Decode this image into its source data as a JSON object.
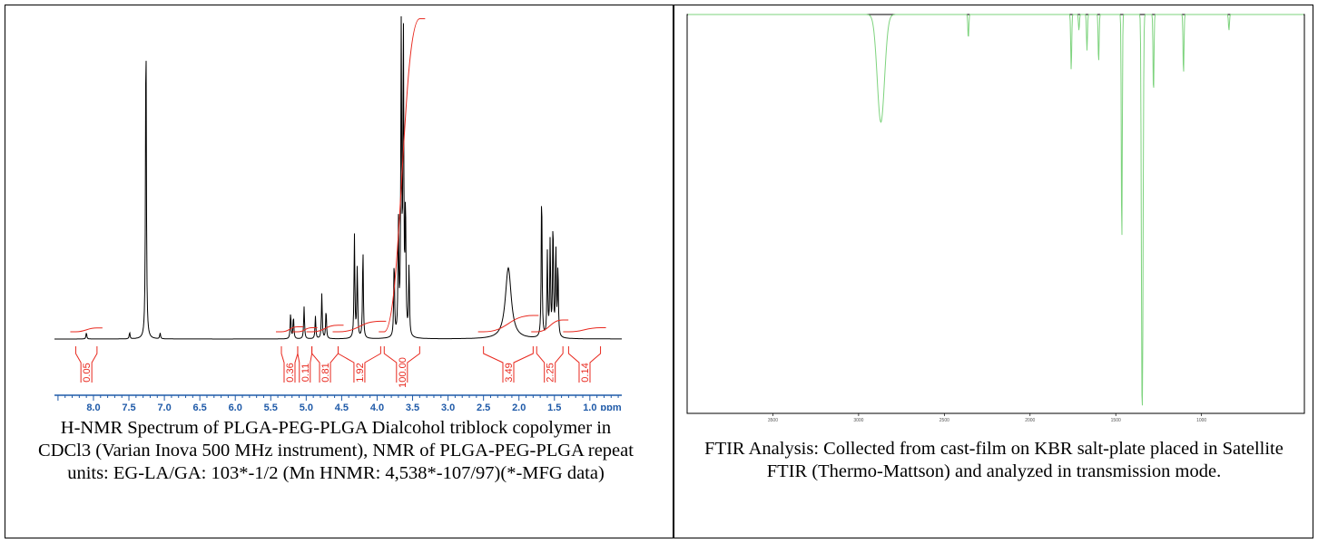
{
  "captions": {
    "nmr": "H-NMR Spectrum of PLGA-PEG-PLGA Dialcohol triblock copolymer in CDCl3 (Varian Inova 500 MHz instrument), NMR of PLGA-PEG-PLGA repeat units: EG-LA/GA: 103*-1/2 (Mn HNMR: 4,538*-107/97)(*-MFG data)",
    "ftir": "FTIR Analysis: Collected from cast-film on KBR salt-plate placed in Satellite FTIR (Thermo-Mattson) and analyzed in transmission mode."
  },
  "colors": {
    "spectrum": "#000000",
    "integral": "#e8281e",
    "ftir": "#7ed37e",
    "axis": "#1f5aa8"
  },
  "chart_data": [
    {
      "type": "line",
      "title": "",
      "xlabel": "ppm",
      "ylabel": "",
      "xlim": [
        8.55,
        0.55
      ],
      "x_reversed": true,
      "grid": false,
      "x_ticks": [
        "8.0",
        "7.5",
        "7.0",
        "6.5",
        "6.0",
        "5.5",
        "5.0",
        "4.5",
        "4.0",
        "3.5",
        "3.0",
        "2.5",
        "2.0",
        "1.5",
        "1.0",
        "ppm"
      ],
      "peaks": [
        {
          "ppm": 8.1,
          "h": 0.02
        },
        {
          "ppm": 7.49,
          "h": 0.02
        },
        {
          "ppm": 7.26,
          "h": 1.0
        },
        {
          "ppm": 7.06,
          "h": 0.018
        },
        {
          "ppm": 5.22,
          "h": 0.08
        },
        {
          "ppm": 5.18,
          "h": 0.07
        },
        {
          "ppm": 5.03,
          "h": 0.1
        },
        {
          "ppm": 4.87,
          "h": 0.07
        },
        {
          "ppm": 4.78,
          "h": 0.14
        },
        {
          "ppm": 4.72,
          "h": 0.09
        },
        {
          "ppm": 4.32,
          "h": 0.32
        },
        {
          "ppm": 4.28,
          "h": 0.22
        },
        {
          "ppm": 4.2,
          "h": 0.28
        },
        {
          "ppm": 3.76,
          "h": 0.24
        },
        {
          "ppm": 3.7,
          "h": 0.35
        },
        {
          "ppm": 3.66,
          "h": 1.0
        },
        {
          "ppm": 3.63,
          "h": 0.95
        },
        {
          "ppm": 3.6,
          "h": 0.4
        },
        {
          "ppm": 3.55,
          "h": 0.22
        },
        {
          "ppm": 2.15,
          "h": 0.22
        },
        {
          "ppm": 1.68,
          "h": 0.47
        },
        {
          "ppm": 1.6,
          "h": 0.26
        },
        {
          "ppm": 1.56,
          "h": 0.3
        },
        {
          "ppm": 1.52,
          "h": 0.36
        },
        {
          "ppm": 1.48,
          "h": 0.28
        },
        {
          "ppm": 1.45,
          "h": 0.22
        }
      ],
      "integrals": [
        {
          "from": 8.25,
          "to": 7.95,
          "label": "0.05"
        },
        {
          "from": 5.35,
          "to": 5.12,
          "label": "0.36"
        },
        {
          "from": 5.12,
          "to": 4.92,
          "label": "0.11"
        },
        {
          "from": 4.92,
          "to": 4.55,
          "label": "0.81"
        },
        {
          "from": 4.55,
          "to": 3.95,
          "label": "1.92"
        },
        {
          "from": 3.9,
          "to": 3.4,
          "label": "100.00"
        },
        {
          "from": 2.5,
          "to": 1.8,
          "label": "3.49"
        },
        {
          "from": 1.75,
          "to": 1.38,
          "label": "2.25"
        },
        {
          "from": 1.3,
          "to": 0.85,
          "label": "0.14"
        }
      ]
    },
    {
      "type": "line",
      "title": "",
      "xlabel": "",
      "ylabel": "",
      "xlim": [
        4000,
        400
      ],
      "x_reversed": true,
      "grid": false,
      "x_ticks": [
        "3500",
        "3000",
        "2500",
        "2000",
        "1500",
        "1000"
      ],
      "baseline_transmittance": 1.0,
      "bands": [
        {
          "wn": 2870,
          "t": 0.73
        },
        {
          "wn": 2360,
          "t": 0.94
        },
        {
          "wn": 1760,
          "t": 0.86
        },
        {
          "wn": 1715,
          "t": 0.96
        },
        {
          "wn": 1668,
          "t": 0.91
        },
        {
          "wn": 1600,
          "t": 0.88
        },
        {
          "wn": 1465,
          "t": 0.42
        },
        {
          "wn": 1350,
          "t": 0.78
        },
        {
          "wn": 1345,
          "t": 0.03
        },
        {
          "wn": 1280,
          "t": 0.8
        },
        {
          "wn": 1105,
          "t": 0.85
        },
        {
          "wn": 840,
          "t": 0.96
        }
      ]
    }
  ]
}
